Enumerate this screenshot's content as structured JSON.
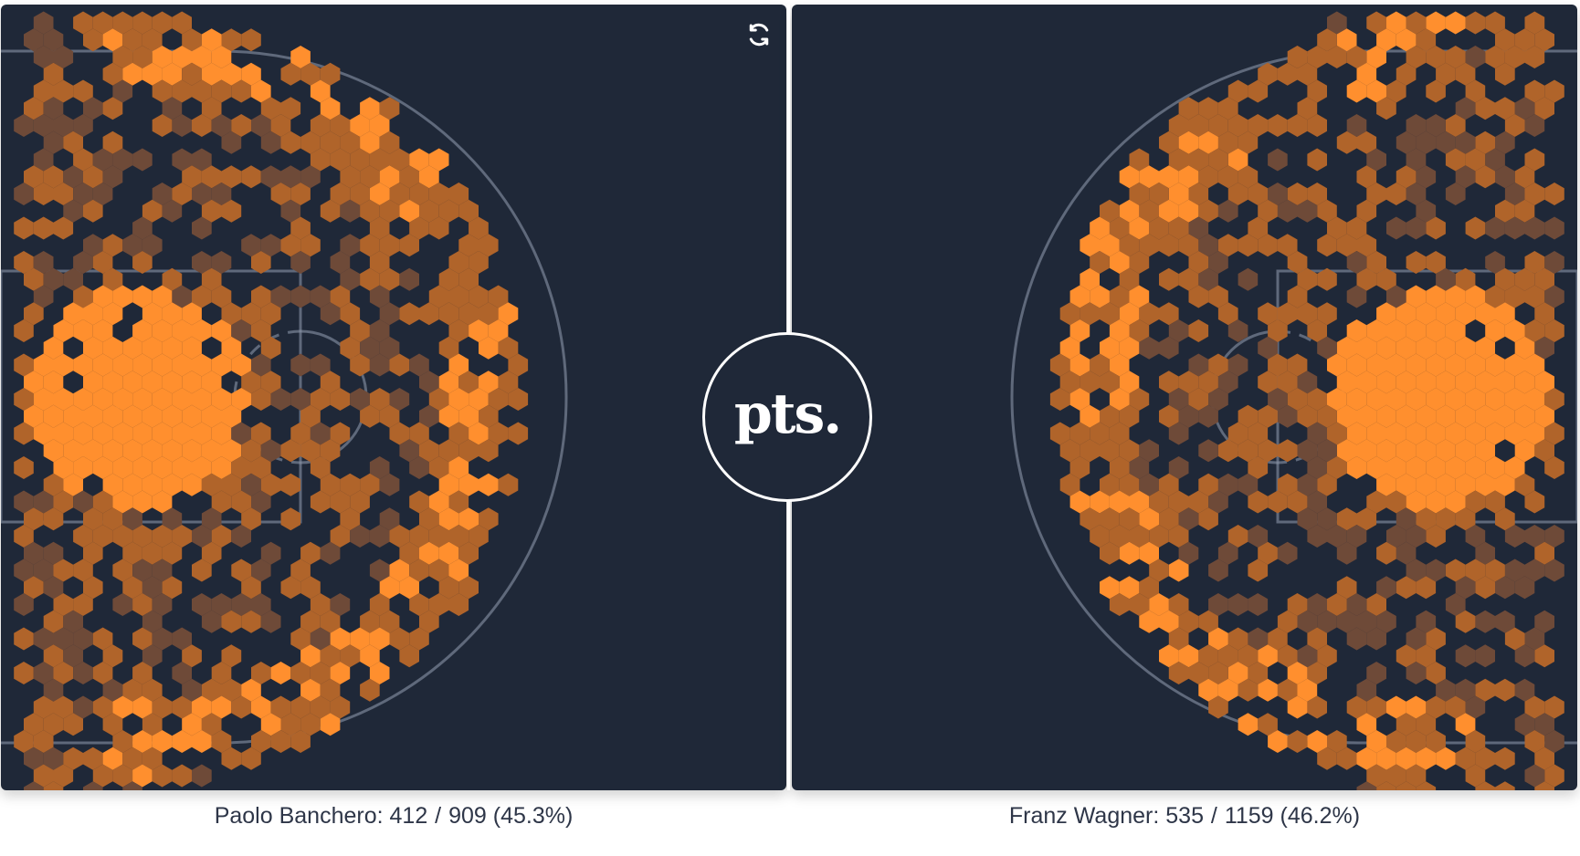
{
  "brand": {
    "logo_text": "pts."
  },
  "colors": {
    "panel_bg": "#1f2838",
    "hex_high": "#ff8f2e",
    "hex_mid": "#b0642a",
    "hex_low": "#6e4a38",
    "court_lines": "#8a95a8"
  },
  "icons": {
    "refresh": "refresh-icon"
  },
  "chart_data": [
    {
      "type": "heatmap",
      "player": "Paolo Banchero",
      "made": "412",
      "attempts": "909",
      "percent": "(45.3%)",
      "hoop_side": "left",
      "grid_on": false,
      "hot_zones": [
        {
          "zone": "paint / restricted area",
          "level": "high"
        },
        {
          "zone": "top of arc, left wing",
          "level": "high"
        },
        {
          "zone": "right wing above-the-break three",
          "level": "high"
        },
        {
          "zone": "left corner three",
          "level": "mixed"
        },
        {
          "zone": "right corner three",
          "level": "mixed"
        },
        {
          "zone": "mid-range",
          "level": "low"
        }
      ]
    },
    {
      "type": "heatmap",
      "player": "Franz Wagner",
      "made": "535",
      "attempts": "1159",
      "percent": "(46.2%)",
      "hoop_side": "right",
      "grid_on": false,
      "hot_zones": [
        {
          "zone": "paint / restricted area",
          "level": "high"
        },
        {
          "zone": "top of arc, right wing",
          "level": "high"
        },
        {
          "zone": "left wing above-the-break three",
          "level": "high"
        },
        {
          "zone": "left corner three",
          "level": "mixed"
        },
        {
          "zone": "right corner three",
          "level": "mixed"
        },
        {
          "zone": "mid-range",
          "level": "low"
        }
      ]
    }
  ]
}
